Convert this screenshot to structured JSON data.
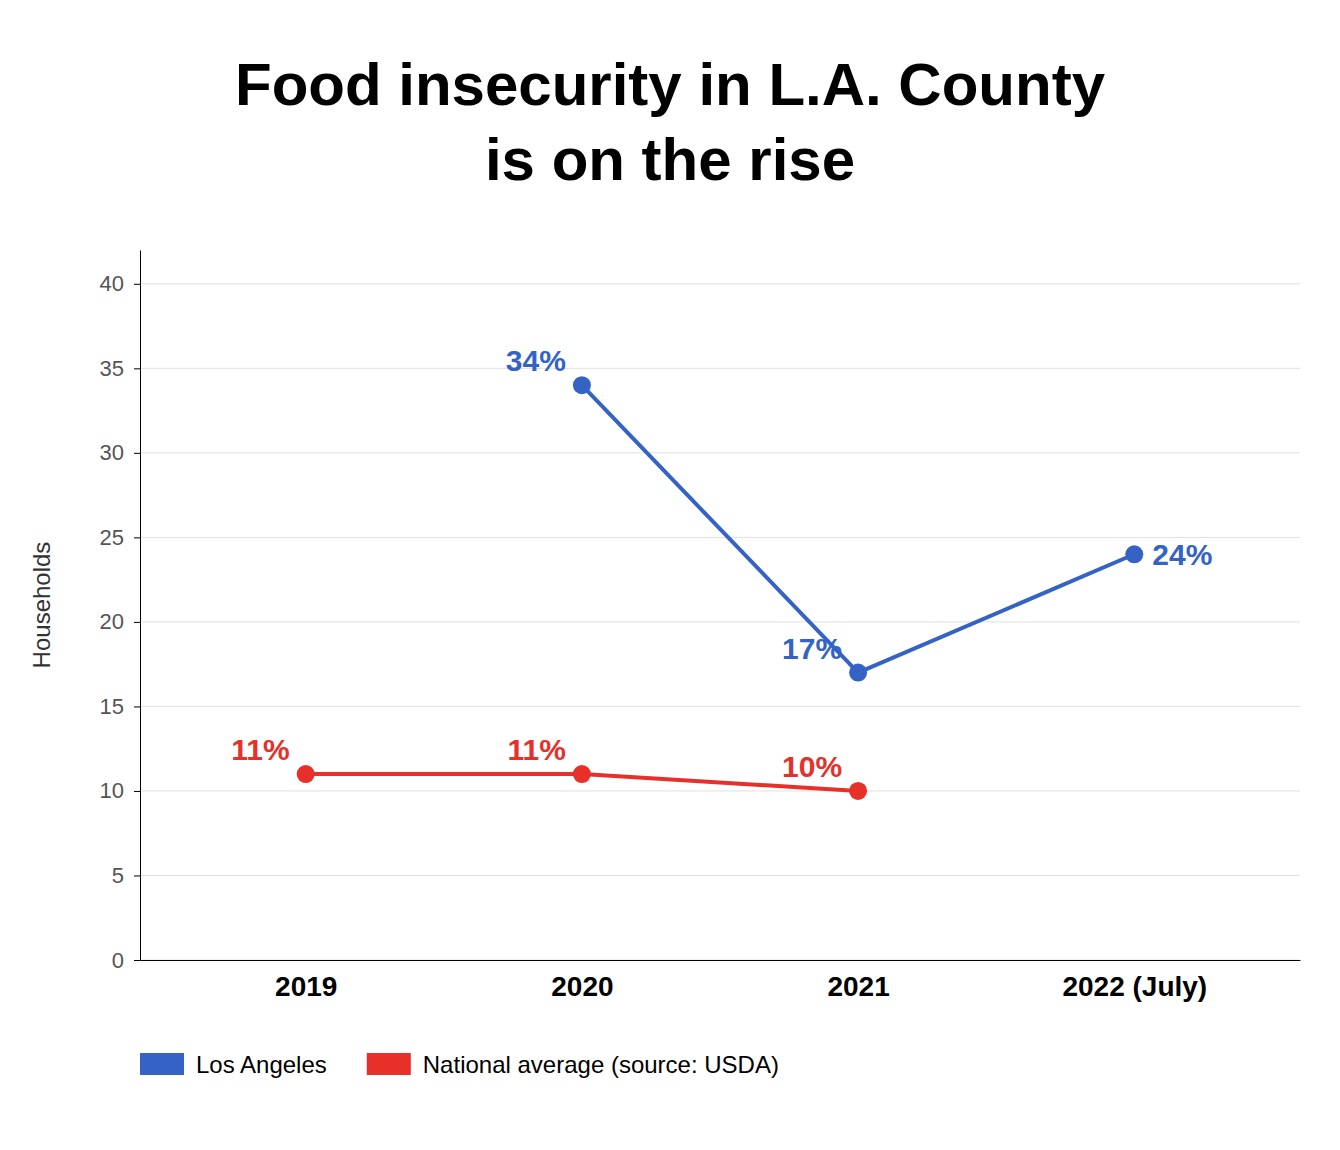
{
  "chart_data": {
    "type": "line",
    "title": "Food insecurity in L.A. County",
    "subtitle": "is on the rise",
    "y_label": "Households",
    "categories": [
      "2019",
      "2020",
      "2021",
      "2022 (July)"
    ],
    "series": [
      {
        "name": "Los Angeles",
        "color": "#3563C5",
        "marker": "circle",
        "values": [
          null,
          34,
          17,
          24
        ],
        "value_labels": [
          null,
          "34%",
          "17%",
          "24%"
        ]
      },
      {
        "name": "National average (source: USDA)",
        "color": "#E8302A",
        "marker": "circle",
        "values": [
          11,
          11,
          10,
          null
        ],
        "value_labels": [
          "11%",
          "11%",
          "10%",
          null
        ]
      }
    ],
    "ylim": [
      0,
      42
    ],
    "yticks": [
      0,
      5,
      10,
      15,
      20,
      25,
      30,
      35,
      40
    ],
    "grid": true,
    "legend": "bottom",
    "data_labels": true
  }
}
